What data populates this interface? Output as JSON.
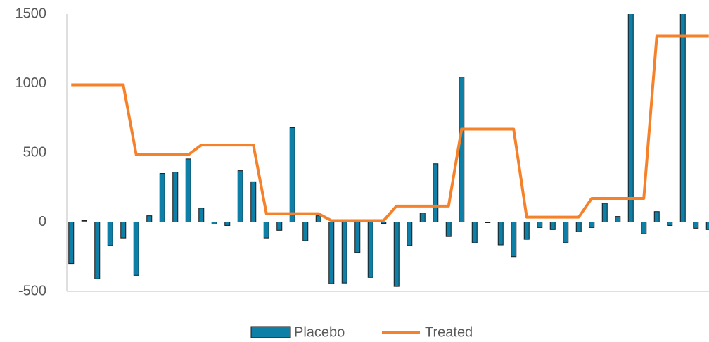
{
  "chart_data": {
    "type": "bar-line",
    "categories": [
      null,
      null,
      null,
      null,
      null,
      null,
      null,
      null,
      null,
      null,
      null,
      null,
      null,
      null,
      null,
      null,
      null,
      null,
      null,
      null,
      null,
      null,
      null,
      null,
      null,
      null,
      null,
      null,
      null,
      null,
      null,
      null,
      null,
      null,
      null,
      null,
      null,
      null,
      null,
      null,
      null,
      null,
      null,
      null,
      null,
      null,
      null,
      null,
      null,
      null
    ],
    "series": [
      {
        "name": "Placebo",
        "type": "bar",
        "color": "#0e7fa6",
        "values": [
          -300,
          10,
          -410,
          -170,
          -115,
          -385,
          45,
          350,
          360,
          455,
          100,
          -15,
          -25,
          370,
          290,
          -115,
          -60,
          680,
          -135,
          45,
          -445,
          -440,
          -220,
          -400,
          -10,
          -465,
          -170,
          65,
          420,
          -105,
          1045,
          -150,
          -5,
          -165,
          -250,
          -125,
          -40,
          -55,
          -150,
          -70,
          -40,
          135,
          40,
          1600,
          -85,
          75,
          -25,
          1600,
          -45,
          -55
        ]
      },
      {
        "name": "Treated",
        "type": "line",
        "color": "#f5822a",
        "values": [
          990,
          990,
          990,
          990,
          990,
          485,
          485,
          485,
          485,
          485,
          555,
          555,
          555,
          555,
          555,
          60,
          60,
          60,
          60,
          60,
          10,
          10,
          10,
          10,
          10,
          115,
          115,
          115,
          115,
          115,
          670,
          670,
          670,
          670,
          670,
          35,
          35,
          35,
          35,
          35,
          170,
          170,
          170,
          170,
          170,
          1340,
          1340,
          1340,
          1340,
          1340
        ]
      }
    ],
    "ylim": [
      -500,
      1500
    ],
    "yticks": [
      -500,
      0,
      500,
      1000,
      1500
    ],
    "legend": "bottom"
  }
}
